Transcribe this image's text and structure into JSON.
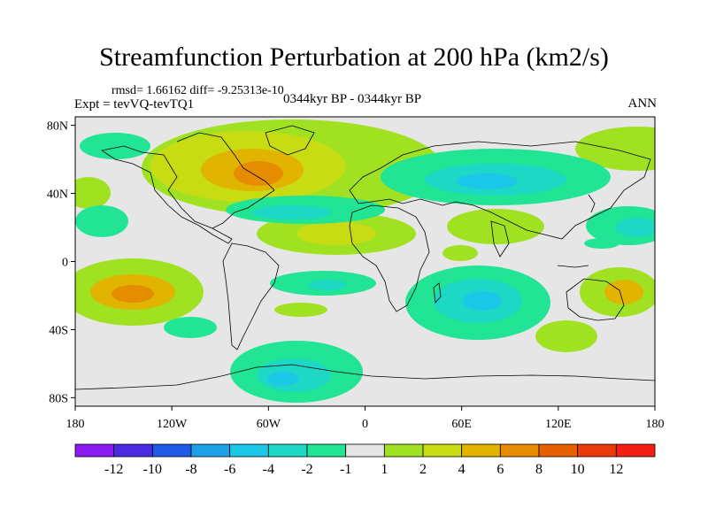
{
  "title": "Streamfunction Perturbation at 200 hPa (km2/s)",
  "stats": "rmsd= 1.66162 diff= -9.25313e-10",
  "experiment": "Expt = tevVQ-tevTQ1",
  "period": "0344kyr BP - 0344kyr BP",
  "season": "ANN",
  "map": {
    "projection": "cylindrical-equidistant",
    "background": "#e6e6e6",
    "coastline_color": "#000000",
    "lat_ticks": [
      {
        "value": 80,
        "label": "80N"
      },
      {
        "value": 40,
        "label": "40N"
      },
      {
        "value": 0,
        "label": "0"
      },
      {
        "value": -40,
        "label": "40S"
      },
      {
        "value": -80,
        "label": "80S"
      }
    ],
    "lon_ticks": [
      {
        "value": -180,
        "label": "180"
      },
      {
        "value": -120,
        "label": "120W"
      },
      {
        "value": -60,
        "label": "60W"
      },
      {
        "value": 0,
        "label": "0"
      },
      {
        "value": 60,
        "label": "60E"
      },
      {
        "value": 120,
        "label": "120E"
      },
      {
        "value": 180,
        "label": "180"
      }
    ]
  },
  "colorbar": {
    "colors": [
      "#8b1cf0",
      "#4b2be0",
      "#1f5ae6",
      "#1ea0e8",
      "#1cc8e8",
      "#1cd8c4",
      "#21e495",
      "#e6e6e6",
      "#a0e222",
      "#c8dc14",
      "#e0b400",
      "#e68c00",
      "#e65f00",
      "#ea3a0a",
      "#f41e14"
    ],
    "labels": [
      "-12",
      "-10",
      "-8",
      "-6",
      "-4",
      "-2",
      "-1",
      "1",
      "2",
      "4",
      "6",
      "8",
      "10",
      "12"
    ]
  }
}
